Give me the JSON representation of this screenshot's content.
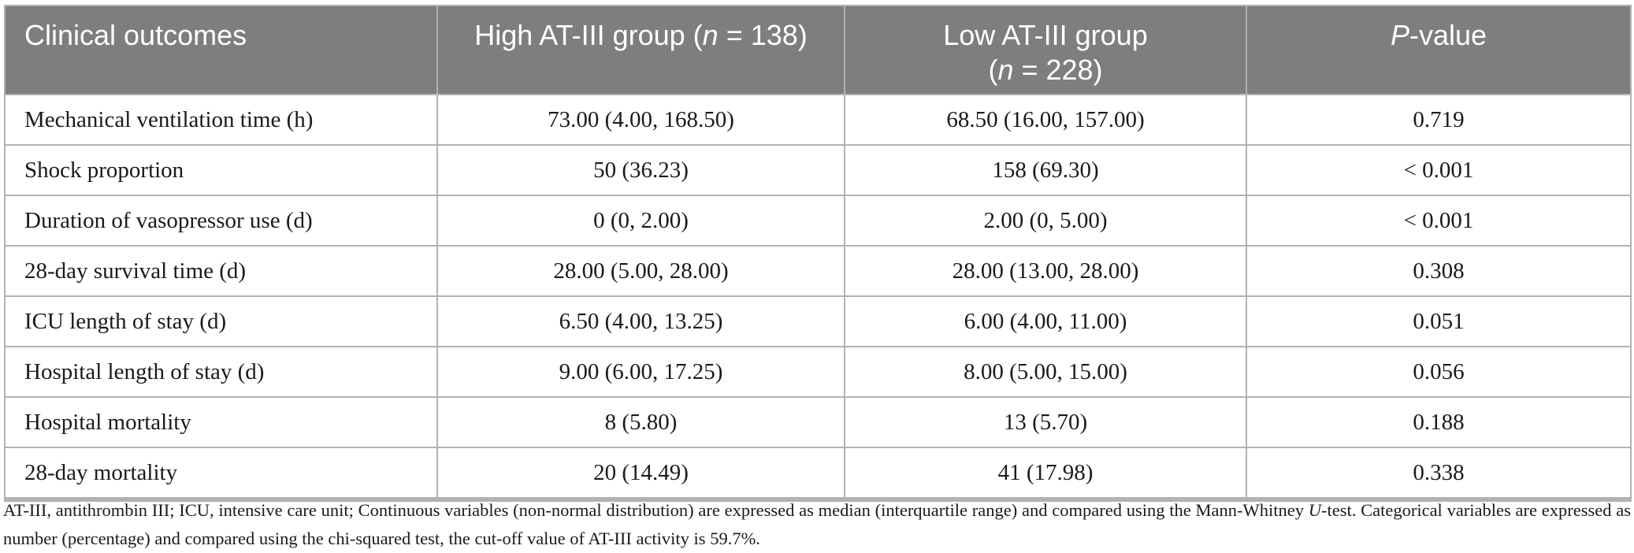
{
  "colors": {
    "header_bg": "#7e7e7e",
    "header_text": "#ffffff",
    "border": "#b2b2b2",
    "body_text": "#1a1a1a"
  },
  "table": {
    "header": {
      "clinical_outcomes": "Clinical outcomes",
      "high_group_segments": [
        {
          "t": "High AT-III group ("
        },
        {
          "t": "n",
          "i": true
        },
        {
          "t": " = 138)"
        }
      ],
      "low_group_segments": [
        {
          "t": "Low AT-III group"
        },
        {
          "br": true
        },
        {
          "t": "("
        },
        {
          "t": "n",
          "i": true
        },
        {
          "t": " = 228)"
        }
      ],
      "p_value_segments": [
        {
          "t": "P",
          "i": true
        },
        {
          "t": "-value"
        }
      ]
    },
    "rows": [
      [
        "Mechanical ventilation time (h)",
        "73.00 (4.00, 168.50)",
        "68.50 (16.00, 157.00)",
        "0.719"
      ],
      [
        "Shock proportion",
        "50 (36.23)",
        "158 (69.30)",
        "< 0.001"
      ],
      [
        "Duration of vasopressor use (d)",
        "0 (0, 2.00)",
        "2.00 (0, 5.00)",
        "< 0.001"
      ],
      [
        "28-day survival time (d)",
        "28.00 (5.00, 28.00)",
        "28.00 (13.00, 28.00)",
        "0.308"
      ],
      [
        "ICU length of stay (d)",
        "6.50 (4.00, 13.25)",
        "6.00 (4.00, 11.00)",
        "0.051"
      ],
      [
        "Hospital length of stay (d)",
        "9.00 (6.00, 17.25)",
        "8.00 (5.00, 15.00)",
        "0.056"
      ],
      [
        "Hospital mortality",
        "8 (5.80)",
        "13 (5.70)",
        "0.188"
      ],
      [
        "28-day mortality",
        "20 (14.49)",
        "41 (17.98)",
        "0.338"
      ]
    ]
  },
  "footnote_segments": [
    {
      "t": "AT-III, antithrombin III; ICU, intensive care unit; Continuous variables (non-normal distribution) are expressed as median (interquartile range) and compared using the Mann-Whitney "
    },
    {
      "t": "U",
      "i": true
    },
    {
      "t": "-test. Categorical variables are expressed as number (percentage) and compared using the chi-squared test, the cut-off value of AT-III activity is 59.7%."
    }
  ]
}
